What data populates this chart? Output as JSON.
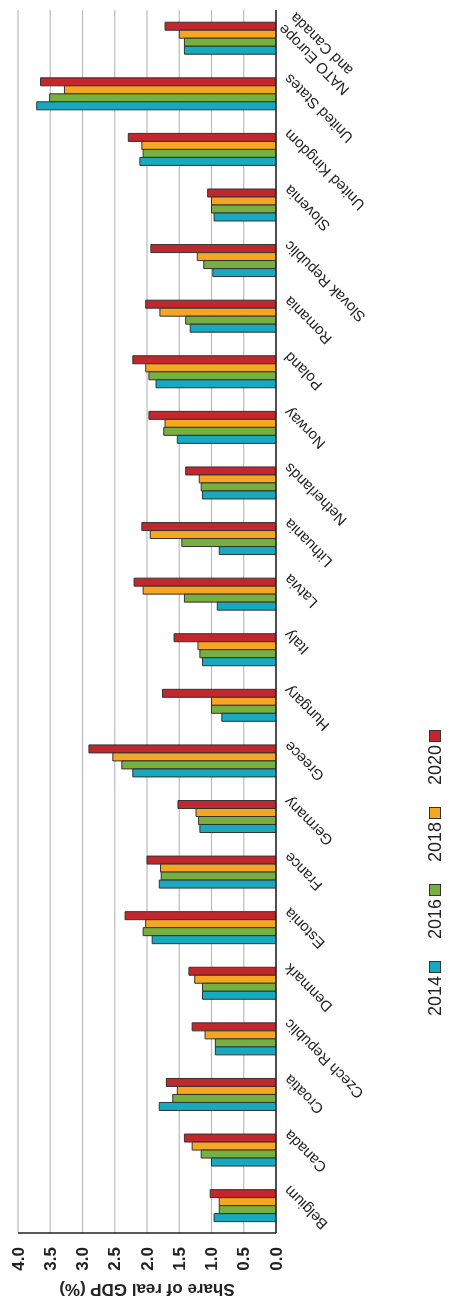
{
  "chart_data": {
    "type": "bar",
    "orientation": "horizontal",
    "xlabel": "Share of real GDP (%)",
    "categories": [
      "NATO Europe and Canada",
      "United States",
      "United Kingdom",
      "Slovenia",
      "Slovak Republic",
      "Romania",
      "Poland",
      "Norway",
      "Netherlands",
      "Lithuania",
      "Latvia",
      "Italy",
      "Hungary",
      "Greece",
      "Germany",
      "France",
      "Estonia",
      "Denmark",
      "Czech Republic",
      "Croatia",
      "Canada",
      "Belgium"
    ],
    "series": [
      {
        "name": "2020",
        "color": "#c1272d",
        "values": [
          1.72,
          3.65,
          2.29,
          1.06,
          1.94,
          2.02,
          2.22,
          1.97,
          1.4,
          2.08,
          2.2,
          1.58,
          1.76,
          2.9,
          1.52,
          2.0,
          2.34,
          1.35,
          1.3,
          1.7,
          1.42,
          1.02
        ]
      },
      {
        "name": "2018",
        "color": "#f5a623",
        "values": [
          1.5,
          3.28,
          2.08,
          1.0,
          1.22,
          1.8,
          2.02,
          1.72,
          1.19,
          1.95,
          2.06,
          1.21,
          1.0,
          2.53,
          1.24,
          1.79,
          2.02,
          1.26,
          1.1,
          1.53,
          1.3,
          0.88
        ]
      },
      {
        "name": "2016",
        "color": "#77b041",
        "values": [
          1.42,
          3.51,
          2.06,
          1.0,
          1.12,
          1.4,
          1.97,
          1.74,
          1.16,
          1.46,
          1.42,
          1.18,
          1.0,
          2.39,
          1.2,
          1.78,
          2.06,
          1.14,
          0.94,
          1.6,
          1.16,
          0.88
        ]
      },
      {
        "name": "2014",
        "color": "#17a9be",
        "values": [
          1.42,
          3.71,
          2.11,
          0.96,
          0.98,
          1.33,
          1.86,
          1.53,
          1.14,
          0.88,
          0.91,
          1.14,
          0.84,
          2.22,
          1.18,
          1.81,
          1.92,
          1.14,
          0.94,
          1.81,
          1.0,
          0.96
        ]
      }
    ],
    "xlim": [
      4,
      0
    ],
    "xticks": [
      {
        "value": 4,
        "label": "4.0"
      },
      {
        "value": 3.5,
        "label": "3.5"
      },
      {
        "value": 3,
        "label": "3.0"
      },
      {
        "value": 2.5,
        "label": "2.5"
      },
      {
        "value": 2,
        "label": "2.0"
      },
      {
        "value": 1.5,
        "label": "1.5"
      },
      {
        "value": 1,
        "label": "1.0"
      },
      {
        "value": 0.5,
        "label": "0.5"
      },
      {
        "value": 0,
        "label": "0.0"
      }
    ],
    "grid": "x",
    "legend": "right"
  }
}
